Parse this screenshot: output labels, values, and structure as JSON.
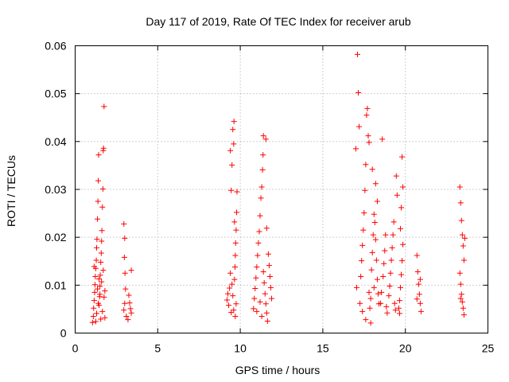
{
  "chart_data": {
    "type": "scatter",
    "title": "Day 117 of 2019, Rate Of TEC Index for receiver arub",
    "xlabel": "GPS time / hours",
    "ylabel": "ROTI / TECUs",
    "xlim": [
      0,
      25
    ],
    "ylim": [
      0,
      0.06
    ],
    "x_ticks": [
      0,
      5,
      10,
      15,
      20,
      25
    ],
    "x_tick_labels": [
      "0",
      "5",
      "10",
      "15",
      "20",
      "25"
    ],
    "y_ticks": [
      0,
      0.01,
      0.02,
      0.03,
      0.04,
      0.05,
      0.06
    ],
    "y_tick_labels": [
      "0",
      "0.01",
      "0.02",
      "0.03",
      "0.04",
      "0.05",
      "0.06"
    ],
    "grid": true,
    "marker": "+",
    "color": "#ff0000",
    "series": [
      {
        "name": "ROTI",
        "points": [
          [
            1.05,
            0.0022
          ],
          [
            1.1,
            0.0035
          ],
          [
            1.12,
            0.0052
          ],
          [
            1.15,
            0.0068
          ],
          [
            1.18,
            0.0085
          ],
          [
            1.2,
            0.0101
          ],
          [
            1.22,
            0.0118
          ],
          [
            1.25,
            0.0135
          ],
          [
            1.28,
            0.0152
          ],
          [
            1.3,
            0.0178
          ],
          [
            1.32,
            0.0196
          ],
          [
            1.35,
            0.0238
          ],
          [
            1.38,
            0.0275
          ],
          [
            1.4,
            0.0318
          ],
          [
            1.42,
            0.0372
          ],
          [
            1.45,
            0.0058
          ],
          [
            1.48,
            0.0076
          ],
          [
            1.5,
            0.0098
          ],
          [
            1.52,
            0.0121
          ],
          [
            1.55,
            0.0148
          ],
          [
            1.58,
            0.0167
          ],
          [
            1.6,
            0.0192
          ],
          [
            1.62,
            0.0214
          ],
          [
            1.65,
            0.0263
          ],
          [
            1.68,
            0.0301
          ],
          [
            1.7,
            0.0381
          ],
          [
            1.72,
            0.0386
          ],
          [
            1.75,
            0.0473
          ],
          [
            1.3,
            0.0041
          ],
          [
            1.4,
            0.0062
          ],
          [
            1.5,
            0.0081
          ],
          [
            1.6,
            0.0107
          ],
          [
            1.7,
            0.0131
          ],
          [
            1.8,
            0.0088
          ],
          [
            1.8,
            0.0032
          ],
          [
            1.25,
            0.0024
          ],
          [
            1.55,
            0.0029
          ],
          [
            1.65,
            0.0045
          ],
          [
            1.35,
            0.0092
          ],
          [
            1.45,
            0.0113
          ],
          [
            1.75,
            0.0075
          ],
          [
            1.15,
            0.0139
          ],
          [
            2.95,
            0.0228
          ],
          [
            3.0,
            0.0198
          ],
          [
            2.98,
            0.0158
          ],
          [
            3.02,
            0.0125
          ],
          [
            3.05,
            0.0092
          ],
          [
            3.0,
            0.0062
          ],
          [
            2.95,
            0.0048
          ],
          [
            3.1,
            0.0035
          ],
          [
            3.25,
            0.0079
          ],
          [
            3.3,
            0.0063
          ],
          [
            3.35,
            0.0051
          ],
          [
            3.4,
            0.0042
          ],
          [
            3.4,
            0.0131
          ],
          [
            3.2,
            0.0028
          ],
          [
            9.2,
            0.0069
          ],
          [
            9.25,
            0.0082
          ],
          [
            9.3,
            0.0058
          ],
          [
            9.35,
            0.0094
          ],
          [
            9.4,
            0.0381
          ],
          [
            9.45,
            0.0298
          ],
          [
            9.5,
            0.0351
          ],
          [
            9.55,
            0.0425
          ],
          [
            9.6,
            0.0395
          ],
          [
            9.62,
            0.0442
          ],
          [
            9.65,
            0.0112
          ],
          [
            9.68,
            0.0138
          ],
          [
            9.7,
            0.0162
          ],
          [
            9.72,
            0.0188
          ],
          [
            9.75,
            0.0215
          ],
          [
            9.78,
            0.0252
          ],
          [
            9.8,
            0.0295
          ],
          [
            9.6,
            0.0048
          ],
          [
            9.7,
            0.0035
          ],
          [
            9.5,
            0.0102
          ],
          [
            9.4,
            0.0125
          ],
          [
            9.55,
            0.0078
          ],
          [
            9.75,
            0.0061
          ],
          [
            9.45,
            0.0043
          ],
          [
            9.65,
            0.0232
          ],
          [
            10.8,
            0.0051
          ],
          [
            10.85,
            0.0072
          ],
          [
            10.9,
            0.0093
          ],
          [
            10.95,
            0.0115
          ],
          [
            11.0,
            0.0138
          ],
          [
            11.05,
            0.0162
          ],
          [
            11.1,
            0.0188
          ],
          [
            11.15,
            0.0212
          ],
          [
            11.2,
            0.0245
          ],
          [
            11.25,
            0.0282
          ],
          [
            11.3,
            0.0305
          ],
          [
            11.35,
            0.0341
          ],
          [
            11.38,
            0.0372
          ],
          [
            11.4,
            0.0412
          ],
          [
            11.45,
            0.0105
          ],
          [
            11.5,
            0.0082
          ],
          [
            11.55,
            0.0061
          ],
          [
            11.6,
            0.0042
          ],
          [
            11.65,
            0.0025
          ],
          [
            11.7,
            0.0165
          ],
          [
            11.75,
            0.0141
          ],
          [
            11.8,
            0.0118
          ],
          [
            11.85,
            0.0095
          ],
          [
            11.9,
            0.0072
          ],
          [
            11.55,
            0.0405
          ],
          [
            11.6,
            0.0219
          ],
          [
            11.2,
            0.0065
          ],
          [
            11.3,
            0.0035
          ],
          [
            11.0,
            0.0045
          ],
          [
            11.4,
            0.0128
          ],
          [
            17.0,
            0.0385
          ],
          [
            17.05,
            0.0095
          ],
          [
            17.1,
            0.0582
          ],
          [
            17.15,
            0.0502
          ],
          [
            17.2,
            0.0431
          ],
          [
            17.25,
            0.0062
          ],
          [
            17.3,
            0.0118
          ],
          [
            17.35,
            0.0151
          ],
          [
            17.4,
            0.0183
          ],
          [
            17.45,
            0.0215
          ],
          [
            17.5,
            0.0251
          ],
          [
            17.55,
            0.0298
          ],
          [
            17.6,
            0.0352
          ],
          [
            17.65,
            0.0455
          ],
          [
            17.7,
            0.0469
          ],
          [
            17.75,
            0.0412
          ],
          [
            17.8,
            0.0085
          ],
          [
            17.85,
            0.0052
          ],
          [
            17.9,
            0.0021
          ],
          [
            17.95,
            0.0132
          ],
          [
            18.0,
            0.0168
          ],
          [
            18.05,
            0.0205
          ],
          [
            18.1,
            0.0248
          ],
          [
            18.15,
            0.0231
          ],
          [
            18.2,
            0.0195
          ],
          [
            18.25,
            0.0152
          ],
          [
            18.3,
            0.0112
          ],
          [
            18.35,
            0.0082
          ],
          [
            18.4,
            0.0061
          ],
          [
            17.8,
            0.0398
          ],
          [
            18.0,
            0.0342
          ],
          [
            18.2,
            0.0312
          ],
          [
            18.3,
            0.0275
          ],
          [
            17.6,
            0.0028
          ],
          [
            17.4,
            0.0045
          ],
          [
            17.9,
            0.0072
          ],
          [
            18.1,
            0.0095
          ],
          [
            18.5,
            0.0062
          ],
          [
            18.55,
            0.0085
          ],
          [
            18.6,
            0.0405
          ],
          [
            18.65,
            0.0118
          ],
          [
            18.7,
            0.0145
          ],
          [
            18.75,
            0.0172
          ],
          [
            18.8,
            0.0205
          ],
          [
            18.85,
            0.0055
          ],
          [
            18.9,
            0.0042
          ],
          [
            19.0,
            0.0078
          ],
          [
            19.05,
            0.0098
          ],
          [
            19.1,
            0.0125
          ],
          [
            19.15,
            0.0152
          ],
          [
            19.2,
            0.0178
          ],
          [
            19.25,
            0.0205
          ],
          [
            19.3,
            0.0232
          ],
          [
            19.35,
            0.0062
          ],
          [
            19.4,
            0.0048
          ],
          [
            19.45,
            0.0328
          ],
          [
            19.5,
            0.0288
          ],
          [
            19.6,
            0.0052
          ],
          [
            19.65,
            0.0068
          ],
          [
            19.7,
            0.0095
          ],
          [
            19.75,
            0.0122
          ],
          [
            19.8,
            0.0151
          ],
          [
            19.85,
            0.0185
          ],
          [
            19.8,
            0.0368
          ],
          [
            19.85,
            0.0305
          ],
          [
            19.7,
            0.0218
          ],
          [
            19.75,
            0.0262
          ],
          [
            19.65,
            0.0041
          ],
          [
            20.7,
            0.0162
          ],
          [
            20.75,
            0.0128
          ],
          [
            20.8,
            0.0102
          ],
          [
            20.85,
            0.0081
          ],
          [
            20.9,
            0.0062
          ],
          [
            20.95,
            0.0045
          ],
          [
            20.7,
            0.0071
          ],
          [
            20.9,
            0.0112
          ],
          [
            23.3,
            0.0305
          ],
          [
            23.35,
            0.0272
          ],
          [
            23.4,
            0.0235
          ],
          [
            23.45,
            0.0205
          ],
          [
            23.5,
            0.0182
          ],
          [
            23.55,
            0.0152
          ],
          [
            23.3,
            0.0125
          ],
          [
            23.35,
            0.0102
          ],
          [
            23.4,
            0.0081
          ],
          [
            23.45,
            0.0065
          ],
          [
            23.5,
            0.0052
          ],
          [
            23.55,
            0.0038
          ],
          [
            23.6,
            0.0198
          ],
          [
            23.35,
            0.0072
          ]
        ]
      }
    ]
  }
}
